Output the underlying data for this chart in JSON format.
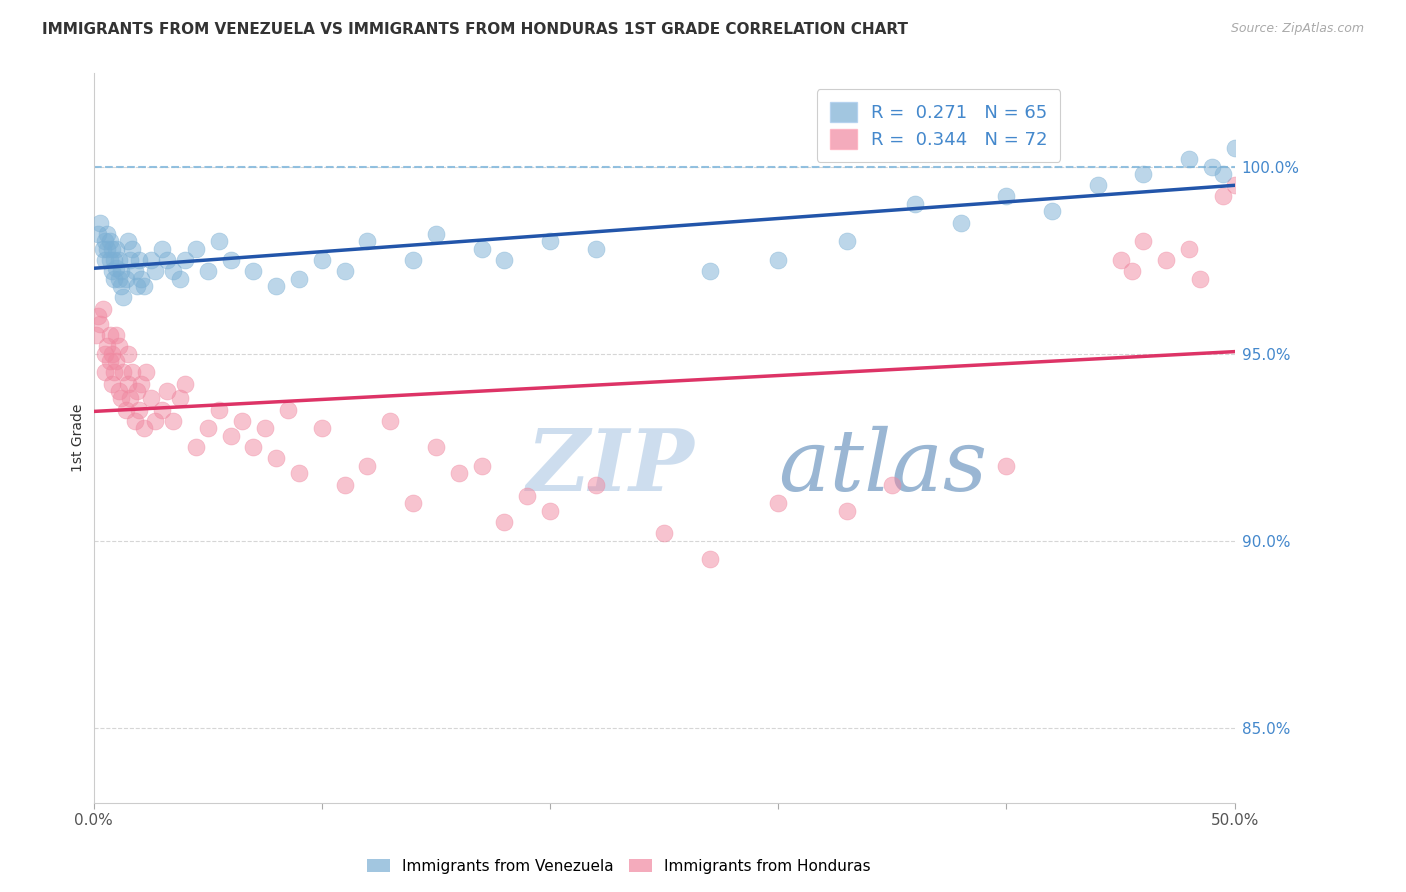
{
  "title": "IMMIGRANTS FROM VENEZUELA VS IMMIGRANTS FROM HONDURAS 1ST GRADE CORRELATION CHART",
  "source": "Source: ZipAtlas.com",
  "ylabel_axis_label": "1st Grade",
  "xlim": [
    0.0,
    50.0
  ],
  "ylim": [
    83.0,
    102.5
  ],
  "yticks_right": [
    85.0,
    90.0,
    95.0,
    100.0
  ],
  "ytick_labels_right": [
    "85.0%",
    "90.0%",
    "95.0%",
    "100.0%"
  ],
  "xtick_positions": [
    0,
    10,
    20,
    30,
    40,
    50
  ],
  "xtick_labels": [
    "0.0%",
    "",
    "",
    "",
    "",
    "50.0%"
  ],
  "blue_scatter_color": "#7BAFD4",
  "pink_scatter_color": "#F088A0",
  "blue_line_color": "#2255AA",
  "pink_line_color": "#DD3366",
  "dashed_line_color": "#88BBDD",
  "grid_color": "#CCCCCC",
  "text_color": "#333333",
  "right_tick_color": "#4488CC",
  "watermark_color": "#CCDDED",
  "legend_blue_label": "R =  0.271   N = 65",
  "legend_pink_label": "R =  0.344   N = 72",
  "bottom_legend_blue": "Immigrants from Venezuela",
  "bottom_legend_pink": "Immigrants from Honduras",
  "ven_x": [
    0.2,
    0.3,
    0.4,
    0.5,
    0.5,
    0.6,
    0.6,
    0.7,
    0.7,
    0.8,
    0.8,
    0.9,
    0.9,
    1.0,
    1.0,
    1.1,
    1.1,
    1.2,
    1.2,
    1.3,
    1.4,
    1.5,
    1.6,
    1.7,
    1.8,
    1.9,
    2.0,
    2.1,
    2.2,
    2.5,
    2.7,
    3.0,
    3.2,
    3.5,
    3.8,
    4.0,
    4.5,
    5.0,
    5.5,
    6.0,
    7.0,
    8.0,
    9.0,
    10.0,
    11.0,
    12.0,
    14.0,
    15.0,
    17.0,
    18.0,
    20.0,
    22.0,
    27.0,
    30.0,
    33.0,
    36.0,
    38.0,
    40.0,
    42.0,
    44.0,
    46.0,
    48.0,
    49.0,
    49.5,
    50.0
  ],
  "ven_y": [
    98.2,
    98.5,
    97.8,
    98.0,
    97.5,
    98.2,
    97.8,
    97.5,
    98.0,
    97.2,
    97.8,
    97.0,
    97.5,
    97.3,
    97.8,
    97.0,
    97.5,
    96.8,
    97.2,
    96.5,
    97.0,
    98.0,
    97.5,
    97.8,
    97.2,
    96.8,
    97.5,
    97.0,
    96.8,
    97.5,
    97.2,
    97.8,
    97.5,
    97.2,
    97.0,
    97.5,
    97.8,
    97.2,
    98.0,
    97.5,
    97.2,
    96.8,
    97.0,
    97.5,
    97.2,
    98.0,
    97.5,
    98.2,
    97.8,
    97.5,
    98.0,
    97.8,
    97.2,
    97.5,
    98.0,
    99.0,
    98.5,
    99.2,
    98.8,
    99.5,
    99.8,
    100.2,
    100.0,
    99.8,
    100.5
  ],
  "hon_x": [
    0.1,
    0.2,
    0.3,
    0.4,
    0.5,
    0.5,
    0.6,
    0.7,
    0.7,
    0.8,
    0.8,
    0.9,
    1.0,
    1.0,
    1.1,
    1.1,
    1.2,
    1.3,
    1.4,
    1.5,
    1.5,
    1.6,
    1.7,
    1.8,
    1.9,
    2.0,
    2.1,
    2.2,
    2.3,
    2.5,
    2.7,
    3.0,
    3.2,
    3.5,
    3.8,
    4.0,
    4.5,
    5.0,
    5.5,
    6.0,
    6.5,
    7.0,
    7.5,
    8.0,
    8.5,
    9.0,
    10.0,
    11.0,
    12.0,
    13.0,
    14.0,
    15.0,
    16.0,
    17.0,
    18.0,
    19.0,
    20.0,
    22.0,
    25.0,
    27.0,
    30.0,
    33.0,
    35.0,
    40.0,
    45.0,
    48.0,
    50.0,
    49.5,
    48.5,
    47.0,
    46.0,
    45.5
  ],
  "hon_y": [
    95.5,
    96.0,
    95.8,
    96.2,
    94.5,
    95.0,
    95.2,
    94.8,
    95.5,
    94.2,
    95.0,
    94.5,
    94.8,
    95.5,
    94.0,
    95.2,
    93.8,
    94.5,
    93.5,
    94.2,
    95.0,
    93.8,
    94.5,
    93.2,
    94.0,
    93.5,
    94.2,
    93.0,
    94.5,
    93.8,
    93.2,
    93.5,
    94.0,
    93.2,
    93.8,
    94.2,
    92.5,
    93.0,
    93.5,
    92.8,
    93.2,
    92.5,
    93.0,
    92.2,
    93.5,
    91.8,
    93.0,
    91.5,
    92.0,
    93.2,
    91.0,
    92.5,
    91.8,
    92.0,
    90.5,
    91.2,
    90.8,
    91.5,
    90.2,
    89.5,
    91.0,
    90.8,
    91.5,
    92.0,
    97.5,
    97.8,
    99.5,
    99.2,
    97.0,
    97.5,
    98.0,
    97.2
  ]
}
